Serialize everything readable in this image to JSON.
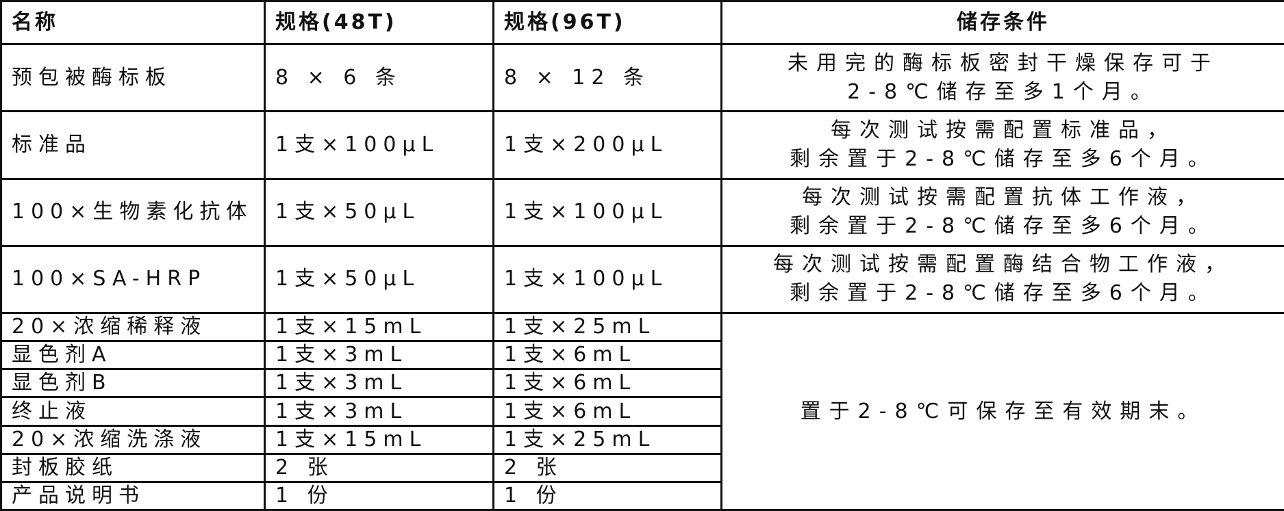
{
  "headers": [
    "名称",
    "规格(48T)",
    "规格(96T)",
    "储存条件"
  ],
  "rows": [
    {
      "name": "预包被酶标板",
      "spec48": "8 × 6 条",
      "spec96": "8 × 12 条",
      "storage": [
        "未用完的酶标板密封干燥保存可于",
        "2-8℃储存至多1个月。"
      ]
    },
    {
      "name": "标准品",
      "spec48": "1支×100μL",
      "spec96": "1支×200μL",
      "storage": [
        "每次测试按需配置标准品，",
        "剩余置于2-8℃储存至多6个月。"
      ]
    },
    {
      "name": "100×生物素化抗体",
      "spec48": "1支×50μL",
      "spec96": "1支×100μL",
      "storage": [
        "每次测试按需配置抗体工作液，",
        "剩余置于2-8℃储存至多6个月。"
      ]
    },
    {
      "name": "100×SA-HRP",
      "spec48": "1支×50μL",
      "spec96": "1支×100μL",
      "storage": [
        "每次测试按需配置酶结合物工作液，",
        "剩余置于2-8℃储存至多6个月。"
      ]
    },
    {
      "name": "20×浓缩稀释液",
      "spec48": "1支×15mL",
      "spec96": "1支×25mL"
    },
    {
      "name": "显色剂A",
      "spec48": "1支×3mL",
      "spec96": "1支×6mL"
    },
    {
      "name": "显色剂B",
      "spec48": "1支×3mL",
      "spec96": "1支×6mL"
    },
    {
      "name": "终止液",
      "spec48": "1支×3mL",
      "spec96": "1支×6mL"
    },
    {
      "name": "20×浓缩洗涤液",
      "spec48": "1支×15mL",
      "spec96": "1支×25mL"
    },
    {
      "name": "封板胶纸",
      "spec48": "2 张",
      "spec96": "2 张"
    },
    {
      "name": "产品说明书",
      "spec48": "1 份",
      "spec96": "1 份"
    }
  ],
  "shared_storage": "置于2-8℃可保存至有效期末。"
}
